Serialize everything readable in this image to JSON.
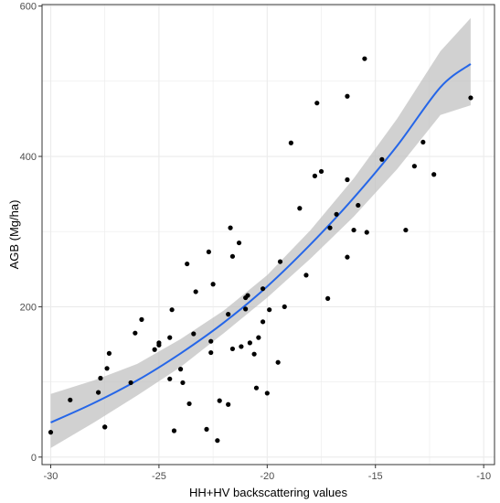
{
  "chart_data": {
    "type": "scatter",
    "title": "",
    "xlabel": "HH+HV backscattering values",
    "ylabel": "AGB (Mg/ha)",
    "xlim": [
      -30.4,
      -9.5
    ],
    "ylim": [
      -10,
      602
    ],
    "x_ticks": [
      -30,
      -25,
      -20,
      -15,
      -10
    ],
    "x_tick_labels": [
      "-30",
      "-25",
      "-20",
      "-15",
      "-10"
    ],
    "y_ticks": [
      0,
      200,
      400,
      600
    ],
    "y_tick_labels": [
      "0",
      "200",
      "400",
      "600"
    ],
    "grid": true,
    "legend": "none",
    "colors": {
      "points": "#000000",
      "fit_line": "#2566e8",
      "confidence_band": "#bdbdbd",
      "panel_border": "#333333",
      "grid": "#ebebeb"
    },
    "points": [
      {
        "x": -30.0,
        "y": 33
      },
      {
        "x": -29.1,
        "y": 76
      },
      {
        "x": -27.8,
        "y": 86
      },
      {
        "x": -27.7,
        "y": 105
      },
      {
        "x": -27.4,
        "y": 118
      },
      {
        "x": -27.3,
        "y": 138
      },
      {
        "x": -27.5,
        "y": 40
      },
      {
        "x": -27.5,
        "y": 40
      },
      {
        "x": -26.3,
        "y": 99
      },
      {
        "x": -26.1,
        "y": 165
      },
      {
        "x": -25.8,
        "y": 183
      },
      {
        "x": -25.2,
        "y": 143
      },
      {
        "x": -25.0,
        "y": 149
      },
      {
        "x": -25.0,
        "y": 152
      },
      {
        "x": -24.5,
        "y": 104
      },
      {
        "x": -24.5,
        "y": 159
      },
      {
        "x": -24.4,
        "y": 196
      },
      {
        "x": -24.3,
        "y": 35
      },
      {
        "x": -24.0,
        "y": 117
      },
      {
        "x": -23.9,
        "y": 99
      },
      {
        "x": -23.7,
        "y": 257
      },
      {
        "x": -23.6,
        "y": 71
      },
      {
        "x": -23.4,
        "y": 164
      },
      {
        "x": -23.3,
        "y": 220
      },
      {
        "x": -22.8,
        "y": 37
      },
      {
        "x": -22.7,
        "y": 273
      },
      {
        "x": -22.6,
        "y": 154
      },
      {
        "x": -22.6,
        "y": 139
      },
      {
        "x": -22.5,
        "y": 230
      },
      {
        "x": -22.3,
        "y": 22
      },
      {
        "x": -22.2,
        "y": 75
      },
      {
        "x": -21.8,
        "y": 70
      },
      {
        "x": -21.8,
        "y": 190
      },
      {
        "x": -21.7,
        "y": 305
      },
      {
        "x": -21.6,
        "y": 144
      },
      {
        "x": -21.6,
        "y": 267
      },
      {
        "x": -21.3,
        "y": 285
      },
      {
        "x": -21.2,
        "y": 147
      },
      {
        "x": -21.0,
        "y": 197
      },
      {
        "x": -21.0,
        "y": 212
      },
      {
        "x": -20.9,
        "y": 215
      },
      {
        "x": -20.8,
        "y": 152
      },
      {
        "x": -20.6,
        "y": 137
      },
      {
        "x": -20.5,
        "y": 92
      },
      {
        "x": -20.4,
        "y": 159
      },
      {
        "x": -20.2,
        "y": 180
      },
      {
        "x": -20.2,
        "y": 224
      },
      {
        "x": -20.0,
        "y": 85
      },
      {
        "x": -19.9,
        "y": 196
      },
      {
        "x": -19.5,
        "y": 126
      },
      {
        "x": -19.4,
        "y": 260
      },
      {
        "x": -19.2,
        "y": 200
      },
      {
        "x": -18.9,
        "y": 418
      },
      {
        "x": -18.5,
        "y": 331
      },
      {
        "x": -18.2,
        "y": 242
      },
      {
        "x": -17.8,
        "y": 374
      },
      {
        "x": -17.7,
        "y": 471
      },
      {
        "x": -17.5,
        "y": 380
      },
      {
        "x": -17.2,
        "y": 211
      },
      {
        "x": -17.1,
        "y": 305
      },
      {
        "x": -16.8,
        "y": 323
      },
      {
        "x": -16.3,
        "y": 369
      },
      {
        "x": -16.3,
        "y": 266
      },
      {
        "x": -16.3,
        "y": 480
      },
      {
        "x": -16.0,
        "y": 302
      },
      {
        "x": -15.8,
        "y": 335
      },
      {
        "x": -15.5,
        "y": 530
      },
      {
        "x": -15.4,
        "y": 299
      },
      {
        "x": -14.7,
        "y": 396
      },
      {
        "x": -13.6,
        "y": 302
      },
      {
        "x": -13.2,
        "y": 387
      },
      {
        "x": -12.8,
        "y": 419
      },
      {
        "x": -12.3,
        "y": 376
      },
      {
        "x": -10.6,
        "y": 478
      }
    ],
    "fit": {
      "x": [
        -30.0,
        -28.0,
        -26.0,
        -24.0,
        -22.0,
        -20.0,
        -18.0,
        -16.0,
        -14.0,
        -12.0,
        -10.6
      ],
      "y": [
        46,
        72,
        102,
        138,
        179,
        227,
        283,
        345,
        414,
        492,
        523
      ],
      "lower": [
        12,
        46,
        82,
        120,
        165,
        212,
        264,
        320,
        383,
        455,
        468
      ],
      "upper": [
        84,
        102,
        124,
        157,
        195,
        242,
        302,
        371,
        450,
        540,
        584
      ]
    }
  }
}
